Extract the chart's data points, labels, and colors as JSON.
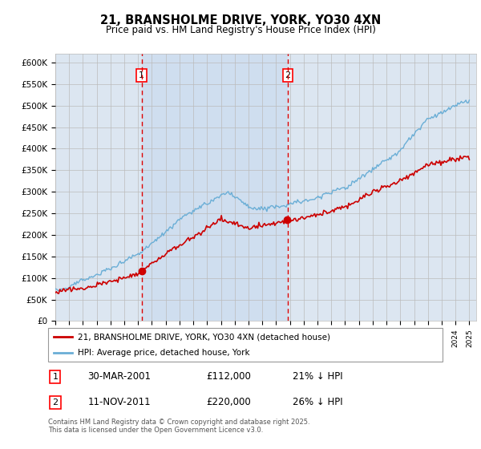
{
  "title": "21, BRANSHOLME DRIVE, YORK, YO30 4XN",
  "subtitle": "Price paid vs. HM Land Registry's House Price Index (HPI)",
  "ylim": [
    0,
    620000
  ],
  "yticks": [
    0,
    50000,
    100000,
    150000,
    200000,
    250000,
    300000,
    350000,
    400000,
    450000,
    500000,
    550000,
    600000
  ],
  "ytick_labels": [
    "£0",
    "£50K",
    "£100K",
    "£150K",
    "£200K",
    "£250K",
    "£300K",
    "£350K",
    "£400K",
    "£450K",
    "£500K",
    "£550K",
    "£600K"
  ],
  "hpi_color": "#6aaed6",
  "price_color": "#cc0000",
  "vline_color": "#dd0000",
  "marker1_x": 2001.25,
  "marker2_x": 2011.85,
  "marker1_label": "1",
  "marker2_label": "2",
  "purchase1_date": "30-MAR-2001",
  "purchase1_price": "£112,000",
  "purchase1_hpi": "21% ↓ HPI",
  "purchase2_date": "11-NOV-2011",
  "purchase2_price": "£220,000",
  "purchase2_hpi": "26% ↓ HPI",
  "legend_line1": "21, BRANSHOLME DRIVE, YORK, YO30 4XN (detached house)",
  "legend_line2": "HPI: Average price, detached house, York",
  "footnote": "Contains HM Land Registry data © Crown copyright and database right 2025.\nThis data is licensed under the Open Government Licence v3.0.",
  "background_color": "#dce6f1",
  "plot_bg": "#ffffff",
  "grid_color": "#bbbbbb",
  "span_color": "#c5d8ee"
}
